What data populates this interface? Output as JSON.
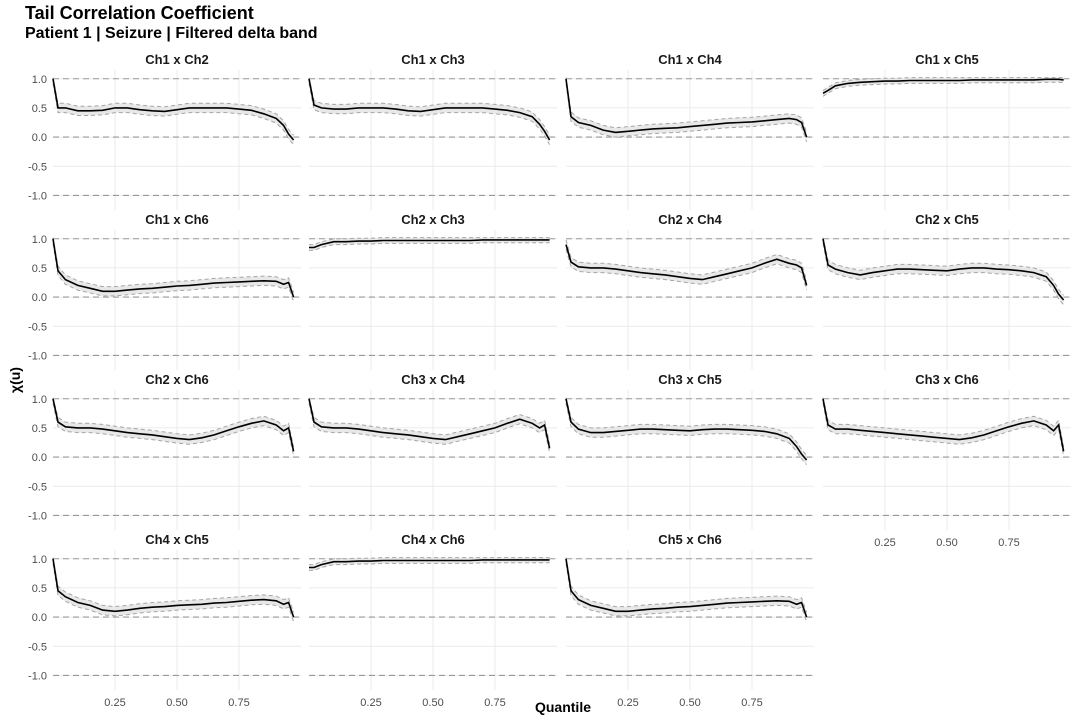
{
  "title": "Tail Correlation Coefficient",
  "subtitle": "Patient 1 | Seizure | Filtered delta band",
  "colors": {
    "line": "#000000",
    "ribbon": "#e8e8e8",
    "ribbon_edge": "#a6a6a6",
    "ref_line": "#999999",
    "grid": "#ebebeb"
  },
  "chart_data": {
    "type": "line",
    "facet_layout": {
      "rows": 4,
      "cols": 4
    },
    "xlabel": "Quantile",
    "ylabel": "χ(u)",
    "xlim": [
      0,
      1
    ],
    "ylim": [
      -1.25,
      1.15
    ],
    "x_ticks": [
      0.25,
      0.5,
      0.75
    ],
    "x_tick_labels": [
      "0.25",
      "0.50",
      "0.75"
    ],
    "y_ticks": [
      1,
      0.5,
      0,
      -0.5,
      -1
    ],
    "y_tick_labels": [
      "1.0",
      "0.5",
      "0.0",
      "-0.5",
      "-1.0"
    ],
    "reference_lines": [
      -1,
      0,
      1
    ],
    "grid": true,
    "x": [
      0.0,
      0.02,
      0.05,
      0.1,
      0.15,
      0.2,
      0.25,
      0.3,
      0.35,
      0.4,
      0.45,
      0.5,
      0.55,
      0.6,
      0.65,
      0.7,
      0.75,
      0.8,
      0.85,
      0.9,
      0.93,
      0.95,
      0.97
    ],
    "panels": [
      {
        "name": "Ch1 x Ch2",
        "values": [
          1.0,
          0.5,
          0.5,
          0.45,
          0.45,
          0.46,
          0.5,
          0.5,
          0.47,
          0.45,
          0.44,
          0.47,
          0.5,
          0.5,
          0.5,
          0.5,
          0.48,
          0.46,
          0.4,
          0.32,
          0.2,
          0.05,
          -0.05
        ],
        "band": 0.08
      },
      {
        "name": "Ch1 x Ch3",
        "values": [
          1.0,
          0.55,
          0.5,
          0.48,
          0.48,
          0.5,
          0.5,
          0.5,
          0.48,
          0.45,
          0.44,
          0.47,
          0.5,
          0.5,
          0.5,
          0.5,
          0.48,
          0.46,
          0.42,
          0.35,
          0.22,
          0.1,
          -0.05
        ],
        "band": 0.08
      },
      {
        "name": "Ch1 x Ch4",
        "values": [
          1.0,
          0.35,
          0.25,
          0.2,
          0.12,
          0.08,
          0.1,
          0.12,
          0.14,
          0.15,
          0.16,
          0.18,
          0.2,
          0.22,
          0.24,
          0.25,
          0.26,
          0.28,
          0.3,
          0.32,
          0.3,
          0.25,
          0.0
        ],
        "band": 0.08
      },
      {
        "name": "Ch1 x Ch5",
        "values": [
          0.75,
          0.8,
          0.88,
          0.92,
          0.94,
          0.95,
          0.96,
          0.96,
          0.97,
          0.97,
          0.97,
          0.97,
          0.97,
          0.98,
          0.98,
          0.98,
          0.98,
          0.98,
          0.98,
          0.99,
          0.99,
          0.99,
          0.98
        ],
        "band": 0.05
      },
      {
        "name": "Ch1 x Ch6",
        "values": [
          1.0,
          0.45,
          0.3,
          0.2,
          0.15,
          0.1,
          0.1,
          0.12,
          0.14,
          0.15,
          0.17,
          0.19,
          0.2,
          0.22,
          0.24,
          0.25,
          0.26,
          0.27,
          0.28,
          0.27,
          0.22,
          0.25,
          0.0
        ],
        "band": 0.08
      },
      {
        "name": "Ch2 x Ch3",
        "values": [
          0.85,
          0.85,
          0.9,
          0.95,
          0.95,
          0.96,
          0.96,
          0.97,
          0.97,
          0.97,
          0.97,
          0.97,
          0.97,
          0.97,
          0.97,
          0.98,
          0.98,
          0.98,
          0.98,
          0.98,
          0.98,
          0.98,
          0.98
        ],
        "band": 0.05
      },
      {
        "name": "Ch2 x Ch4",
        "values": [
          0.9,
          0.6,
          0.52,
          0.5,
          0.5,
          0.48,
          0.45,
          0.42,
          0.4,
          0.38,
          0.35,
          0.32,
          0.3,
          0.35,
          0.4,
          0.45,
          0.5,
          0.58,
          0.65,
          0.58,
          0.55,
          0.5,
          0.2
        ],
        "band": 0.08
      },
      {
        "name": "Ch2 x Ch5",
        "values": [
          1.0,
          0.55,
          0.48,
          0.42,
          0.38,
          0.42,
          0.45,
          0.48,
          0.48,
          0.47,
          0.46,
          0.45,
          0.48,
          0.5,
          0.5,
          0.48,
          0.47,
          0.45,
          0.42,
          0.35,
          0.2,
          0.05,
          -0.05
        ],
        "band": 0.08
      },
      {
        "name": "Ch2 x Ch6",
        "values": [
          1.0,
          0.6,
          0.52,
          0.5,
          0.5,
          0.48,
          0.45,
          0.42,
          0.4,
          0.38,
          0.35,
          0.32,
          0.3,
          0.33,
          0.38,
          0.45,
          0.52,
          0.58,
          0.62,
          0.55,
          0.45,
          0.5,
          0.1
        ],
        "band": 0.08
      },
      {
        "name": "Ch3 x Ch4",
        "values": [
          1.0,
          0.6,
          0.52,
          0.5,
          0.5,
          0.48,
          0.45,
          0.42,
          0.4,
          0.38,
          0.35,
          0.32,
          0.3,
          0.35,
          0.4,
          0.45,
          0.5,
          0.58,
          0.65,
          0.58,
          0.5,
          0.55,
          0.15
        ],
        "band": 0.08
      },
      {
        "name": "Ch3 x Ch5",
        "values": [
          1.0,
          0.6,
          0.48,
          0.42,
          0.42,
          0.44,
          0.46,
          0.48,
          0.48,
          0.47,
          0.46,
          0.45,
          0.47,
          0.48,
          0.48,
          0.47,
          0.46,
          0.44,
          0.4,
          0.32,
          0.18,
          0.05,
          -0.05
        ],
        "band": 0.08
      },
      {
        "name": "Ch3 x Ch6",
        "values": [
          1.0,
          0.55,
          0.48,
          0.48,
          0.46,
          0.44,
          0.42,
          0.4,
          0.38,
          0.36,
          0.34,
          0.32,
          0.3,
          0.33,
          0.38,
          0.45,
          0.52,
          0.58,
          0.62,
          0.55,
          0.45,
          0.55,
          0.1
        ],
        "band": 0.08
      },
      {
        "name": "Ch4 x Ch5",
        "values": [
          1.0,
          0.45,
          0.35,
          0.25,
          0.2,
          0.12,
          0.1,
          0.12,
          0.15,
          0.17,
          0.18,
          0.2,
          0.21,
          0.22,
          0.24,
          0.25,
          0.27,
          0.29,
          0.3,
          0.28,
          0.22,
          0.25,
          0.0
        ],
        "band": 0.08
      },
      {
        "name": "Ch4 x Ch6",
        "values": [
          0.85,
          0.85,
          0.9,
          0.95,
          0.95,
          0.96,
          0.96,
          0.97,
          0.97,
          0.97,
          0.97,
          0.97,
          0.97,
          0.97,
          0.97,
          0.98,
          0.98,
          0.98,
          0.98,
          0.98,
          0.98,
          0.98,
          0.98
        ],
        "band": 0.05
      },
      {
        "name": "Ch5 x Ch6",
        "values": [
          1.0,
          0.45,
          0.3,
          0.2,
          0.15,
          0.1,
          0.1,
          0.12,
          0.14,
          0.15,
          0.17,
          0.18,
          0.2,
          0.22,
          0.24,
          0.25,
          0.26,
          0.27,
          0.28,
          0.27,
          0.22,
          0.25,
          0.0
        ],
        "band": 0.08
      }
    ]
  }
}
